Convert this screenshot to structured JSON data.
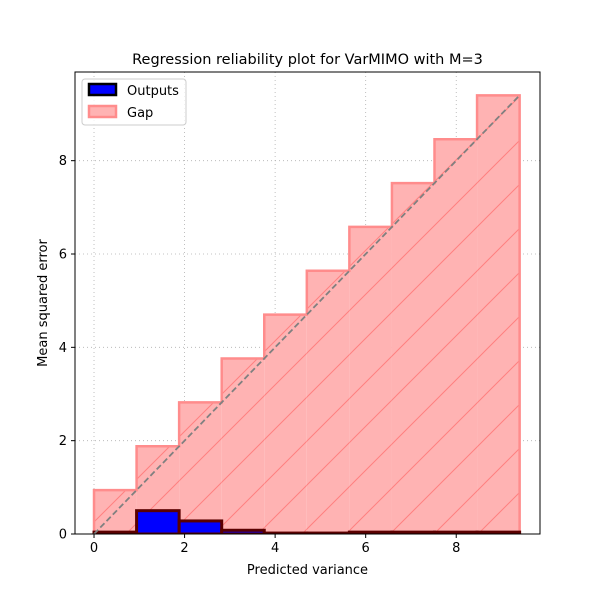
{
  "chart_data": {
    "type": "bar",
    "title": "Regression reliability plot for VarMIMO with M=3",
    "xlabel": "Predicted variance",
    "ylabel": "Mean squared error",
    "xlim": [
      -0.42,
      9.85
    ],
    "ylim": [
      0,
      9.9
    ],
    "xticks": [
      0,
      2,
      4,
      6,
      8
    ],
    "yticks": [
      0,
      2,
      4,
      6,
      8
    ],
    "grid": true,
    "legend_position": "upper-left",
    "bin_edges": [
      0,
      0.94,
      1.88,
      2.82,
      3.76,
      4.7,
      5.64,
      6.58,
      7.52,
      8.46,
      9.4
    ],
    "series": [
      {
        "name": "Outputs",
        "color": "#0000ff",
        "edgecolor": "#5a0000",
        "values": [
          0.04,
          0.5,
          0.28,
          0.08,
          0.02,
          0.02,
          0.04,
          0.04,
          0.04,
          0.04
        ]
      },
      {
        "name": "Gap",
        "color": "#ffb3b3",
        "edgecolor": "#ff8c8c",
        "hatch": "/",
        "values": [
          0.94,
          1.88,
          2.82,
          3.76,
          4.7,
          5.64,
          6.58,
          7.52,
          8.46,
          9.4
        ]
      }
    ],
    "reference_line": {
      "style": "dashed",
      "color": "#808080",
      "from": [
        0,
        0
      ],
      "to": [
        9.4,
        9.4
      ]
    }
  }
}
